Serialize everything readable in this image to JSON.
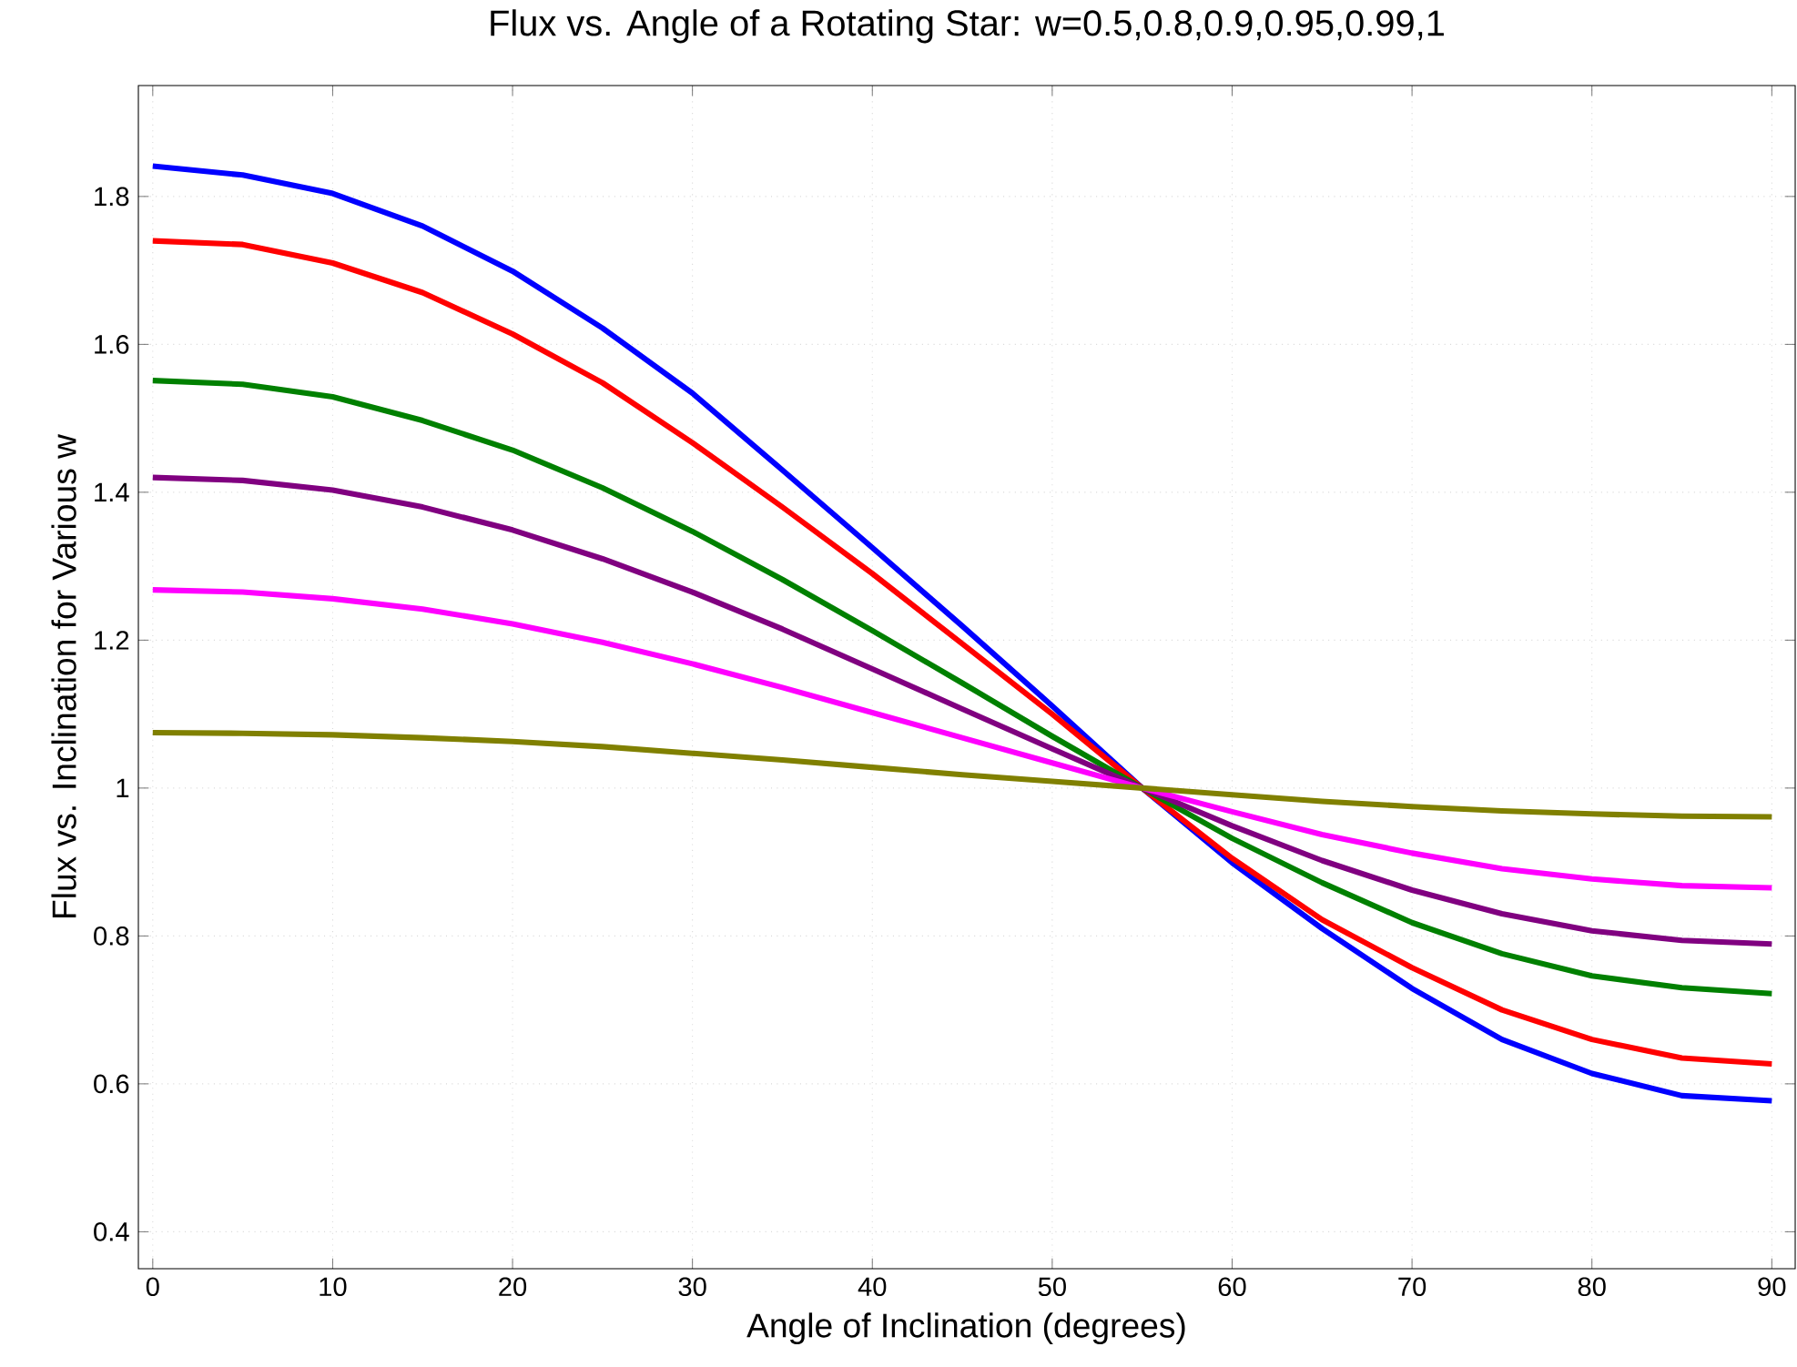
{
  "chart_data": {
    "type": "line",
    "title": "Flux vs. Angle of a Rotating Star: w=0.5,0.8,0.9,0.95,0.99,1",
    "xlabel": "Angle of Inclination (degrees)",
    "ylabel": "Flux vs. Inclination for Various w",
    "x": [
      0,
      5,
      10,
      15,
      20,
      25,
      30,
      35,
      40,
      45,
      50,
      55,
      60,
      65,
      70,
      75,
      80,
      85,
      90
    ],
    "series": [
      {
        "color": "#0000ff",
        "values": [
          1.841,
          1.829,
          1.804,
          1.76,
          1.699,
          1.622,
          1.534,
          1.43,
          1.325,
          1.219,
          1.111,
          1.0,
          0.899,
          0.81,
          0.729,
          0.66,
          0.614,
          0.584,
          0.577
        ]
      },
      {
        "color": "#ff0000",
        "values": [
          1.74,
          1.735,
          1.71,
          1.67,
          1.614,
          1.548,
          1.467,
          1.38,
          1.29,
          1.195,
          1.1,
          1.0,
          0.905,
          0.822,
          0.757,
          0.7,
          0.66,
          0.635,
          0.627
        ]
      },
      {
        "color": "#008000",
        "values": [
          1.551,
          1.546,
          1.529,
          1.497,
          1.457,
          1.406,
          1.347,
          1.282,
          1.213,
          1.142,
          1.07,
          1.0,
          0.932,
          0.872,
          0.818,
          0.776,
          0.746,
          0.73,
          0.722
        ]
      },
      {
        "color": "#800080",
        "values": [
          1.42,
          1.416,
          1.403,
          1.38,
          1.349,
          1.31,
          1.265,
          1.215,
          1.161,
          1.107,
          1.053,
          1.0,
          0.949,
          0.902,
          0.862,
          0.83,
          0.807,
          0.794,
          0.789
        ]
      },
      {
        "color": "#ff00ff",
        "values": [
          1.268,
          1.265,
          1.256,
          1.242,
          1.222,
          1.197,
          1.168,
          1.136,
          1.102,
          1.068,
          1.034,
          1.0,
          0.968,
          0.937,
          0.912,
          0.891,
          0.877,
          0.868,
          0.865
        ]
      },
      {
        "color": "#808000",
        "values": [
          1.075,
          1.074,
          1.072,
          1.068,
          1.063,
          1.056,
          1.047,
          1.038,
          1.028,
          1.018,
          1.009,
          1.0,
          0.991,
          0.982,
          0.975,
          0.969,
          0.965,
          0.962,
          0.961
        ]
      }
    ],
    "xlim": [
      -0.8,
      91.3
    ],
    "ylim": [
      0.35,
      1.95
    ],
    "xticks": [
      0,
      10,
      20,
      30,
      40,
      50,
      60,
      70,
      80,
      90
    ],
    "yticks": [
      0.4,
      0.6,
      0.8,
      1,
      1.2,
      1.4,
      1.6,
      1.8
    ],
    "grid": true,
    "line_style": "solid",
    "marker": "none"
  }
}
